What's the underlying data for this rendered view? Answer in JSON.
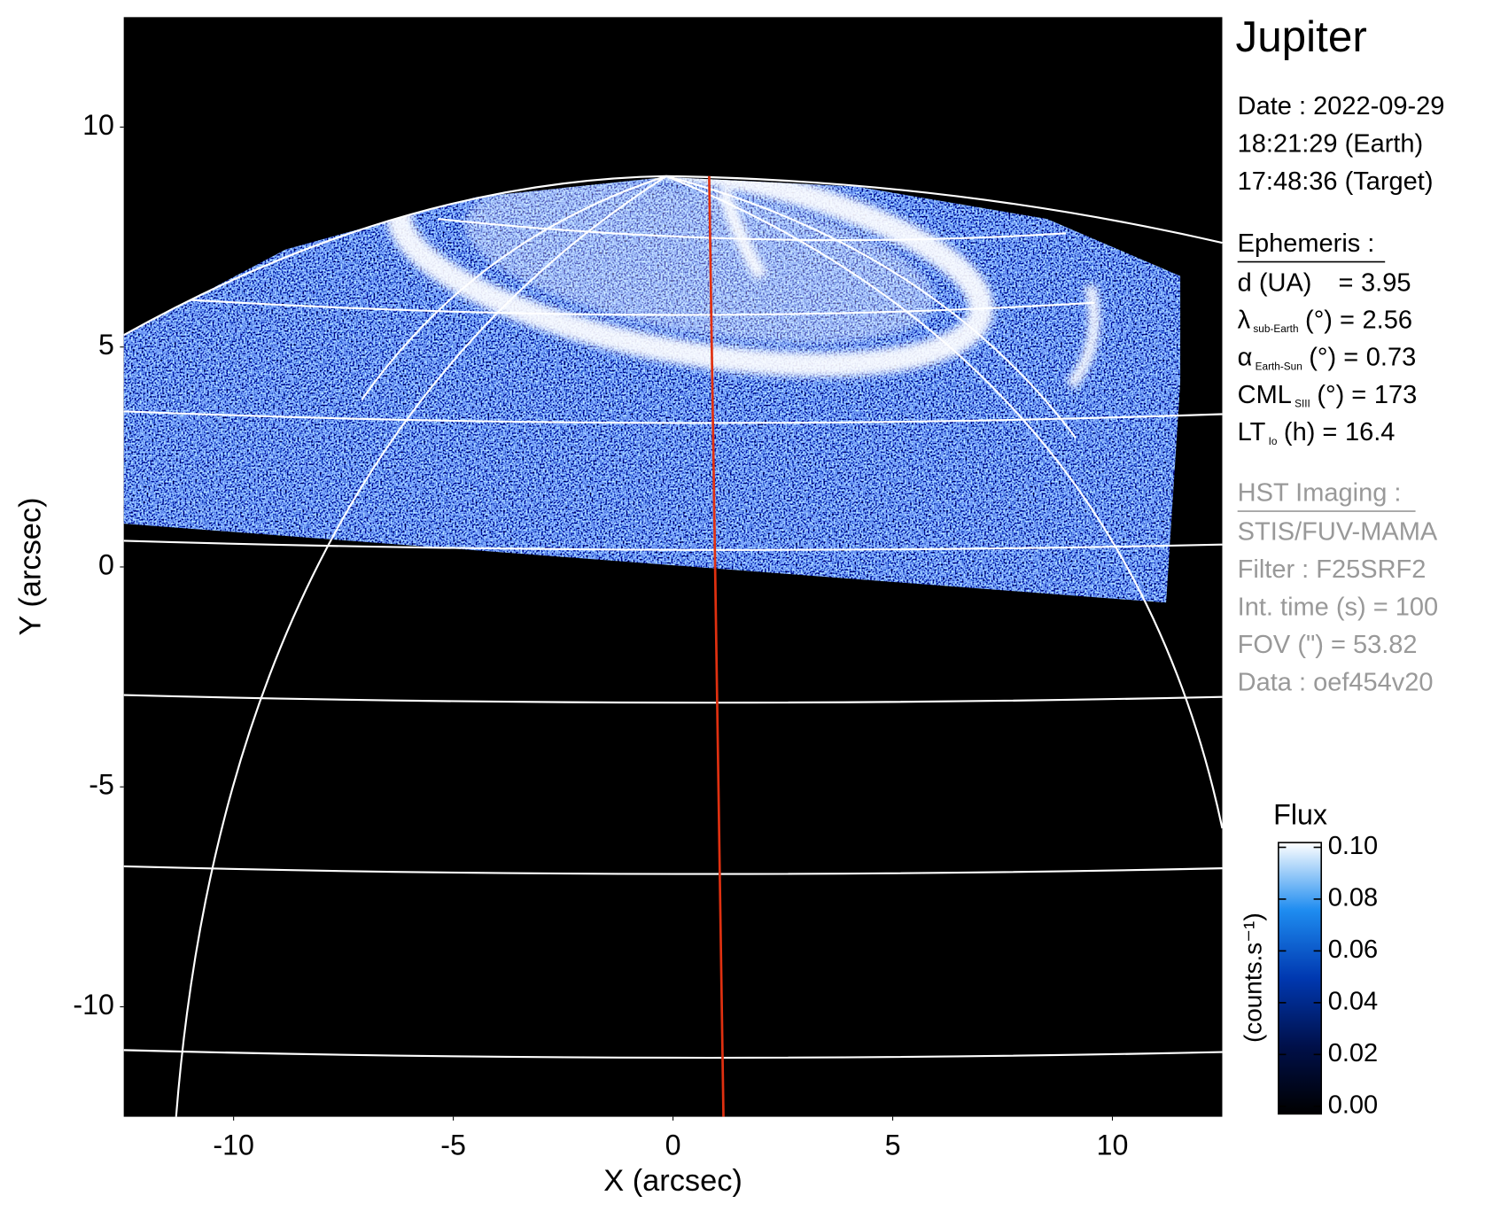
{
  "chart_data": {
    "type": "image",
    "title": "Jupiter",
    "xlabel": "X (arcsec)",
    "ylabel": "Y (arcsec)",
    "xlim": [
      -12.5,
      12.5
    ],
    "ylim": [
      -12.5,
      12.5
    ],
    "xticks": [
      -10,
      -5,
      0,
      5,
      10
    ],
    "yticks": [
      -10,
      -5,
      0,
      5,
      10
    ],
    "colorbar": {
      "title": "Flux",
      "label": "(counts.s⁻¹)",
      "clim": [
        0,
        0.1
      ],
      "colors": [
        "#000000",
        "#00104a",
        "#0038b0",
        "#1e8cf0",
        "#ffffff"
      ],
      "ticks": [
        {
          "value": 0.1,
          "label": "0.10"
        },
        {
          "value": 0.08,
          "label": "0.08"
        },
        {
          "value": 0.06,
          "label": "0.06"
        },
        {
          "value": 0.04,
          "label": "0.04"
        },
        {
          "value": 0.02,
          "label": "0.02"
        },
        {
          "value": 0,
          "label": "0.00"
        }
      ]
    },
    "info": [
      "Date : 2022-09-29",
      "18:21:29 (Earth)",
      "17:48:36 (Target)"
    ],
    "ephemeris": {
      "title": "Ephemeris :",
      "rows": [
        {
          "label": "d (UA)",
          "unit": "=",
          "value": 3.95
        },
        {
          "label": "λ",
          "sub": "sub-Earth",
          "unit": "(°) =",
          "value": 2.56
        },
        {
          "label": "α",
          "sub": "Earth-Sun",
          "unit": "(°) =",
          "value": 0.73
        },
        {
          "label": "CML",
          "sub": "SIII",
          "unit": "(°) =",
          "value": 173
        },
        {
          "label": "LT",
          "sub": "Io",
          "unit": "(h) =",
          "value": 16.4
        }
      ]
    },
    "instrument": {
      "title": "HST Imaging :",
      "lines": [
        "STIS/FUV-MAMA",
        "Filter : F25SRF2",
        "Int. time (s) = 100",
        "FOV (\") = 53.82",
        "Data : oef454v20"
      ]
    }
  }
}
